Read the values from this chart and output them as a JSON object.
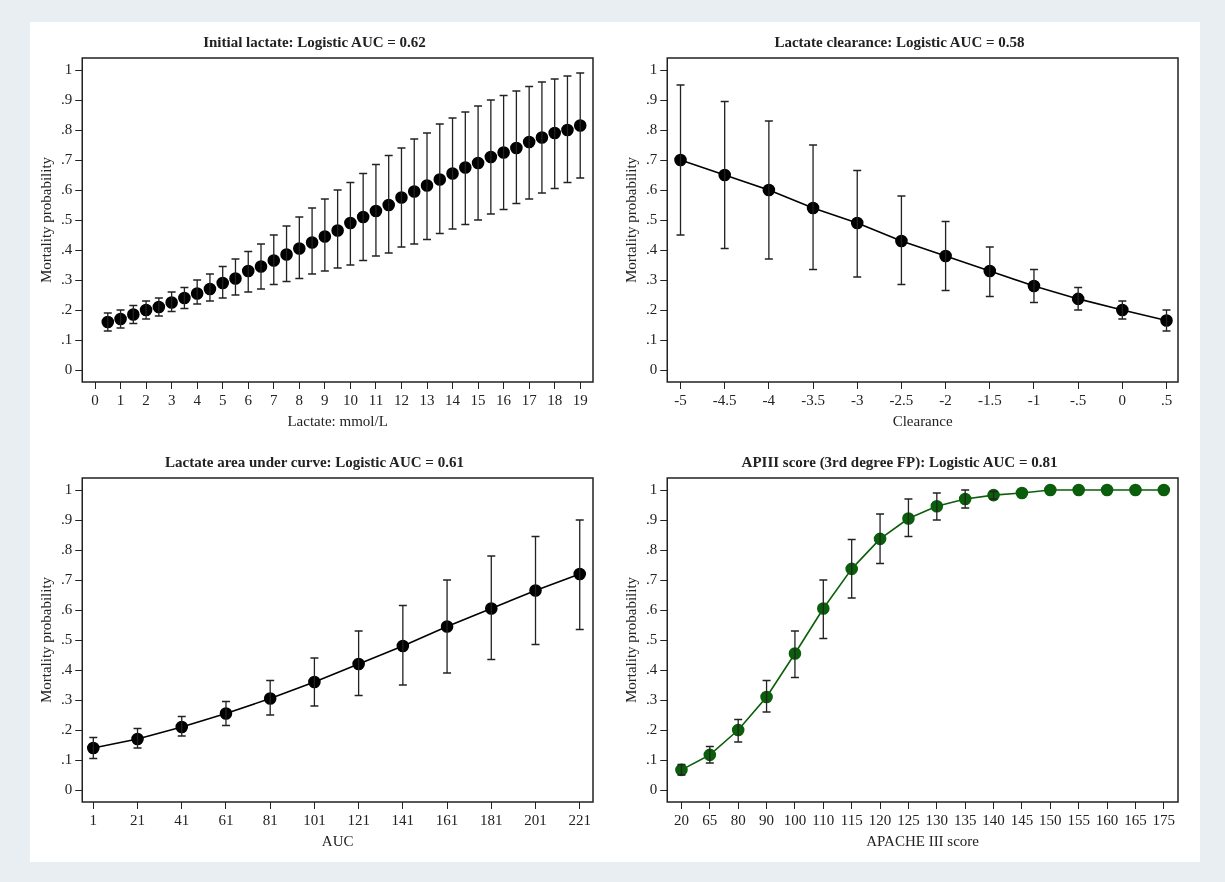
{
  "chart_data": [
    {
      "type": "scatter",
      "title": "Initial lactate: Logistic AUC = 0.62",
      "xlabel": "Lactate: mmol/L",
      "ylabel": "Mortality probability",
      "marker": "circle",
      "grid": false,
      "legend": false,
      "x": [
        0.5,
        1,
        1.5,
        2,
        2.5,
        3,
        3.5,
        4,
        4.5,
        5,
        5.5,
        6,
        6.5,
        7,
        7.5,
        8,
        8.5,
        9,
        9.5,
        10,
        10.5,
        11,
        11.5,
        12,
        12.5,
        13,
        13.5,
        14,
        14.5,
        15,
        15.5,
        16,
        16.5,
        17,
        17.5,
        18,
        18.5,
        19
      ],
      "series": [
        {
          "color": "#000000",
          "values": [
            0.16,
            0.17,
            0.185,
            0.2,
            0.21,
            0.225,
            0.24,
            0.255,
            0.27,
            0.29,
            0.305,
            0.33,
            0.345,
            0.365,
            0.385,
            0.405,
            0.425,
            0.445,
            0.465,
            0.49,
            0.51,
            0.53,
            0.55,
            0.575,
            0.595,
            0.615,
            0.635,
            0.655,
            0.675,
            0.69,
            0.71,
            0.725,
            0.74,
            0.76,
            0.775,
            0.79,
            0.8,
            0.815
          ],
          "errors": [
            [
              0.13,
              0.19
            ],
            [
              0.14,
              0.2
            ],
            [
              0.155,
              0.215
            ],
            [
              0.17,
              0.23
            ],
            [
              0.18,
              0.24
            ],
            [
              0.195,
              0.26
            ],
            [
              0.205,
              0.275
            ],
            [
              0.22,
              0.3
            ],
            [
              0.23,
              0.32
            ],
            [
              0.24,
              0.345
            ],
            [
              0.25,
              0.37
            ],
            [
              0.26,
              0.395
            ],
            [
              0.27,
              0.42
            ],
            [
              0.285,
              0.45
            ],
            [
              0.295,
              0.48
            ],
            [
              0.305,
              0.51
            ],
            [
              0.32,
              0.54
            ],
            [
              0.33,
              0.57
            ],
            [
              0.34,
              0.6
            ],
            [
              0.35,
              0.625
            ],
            [
              0.365,
              0.655
            ],
            [
              0.38,
              0.685
            ],
            [
              0.39,
              0.715
            ],
            [
              0.41,
              0.74
            ],
            [
              0.42,
              0.77
            ],
            [
              0.435,
              0.79
            ],
            [
              0.455,
              0.82
            ],
            [
              0.47,
              0.84
            ],
            [
              0.485,
              0.86
            ],
            [
              0.5,
              0.88
            ],
            [
              0.52,
              0.9
            ],
            [
              0.535,
              0.915
            ],
            [
              0.555,
              0.93
            ],
            [
              0.57,
              0.945
            ],
            [
              0.59,
              0.96
            ],
            [
              0.605,
              0.97
            ],
            [
              0.625,
              0.98
            ],
            [
              0.64,
              0.99
            ]
          ]
        }
      ],
      "xlim": [
        -0.5,
        19.5
      ],
      "xticks": [
        0,
        1,
        2,
        3,
        4,
        5,
        6,
        7,
        8,
        9,
        10,
        11,
        12,
        13,
        14,
        15,
        16,
        17,
        18,
        19
      ],
      "ylim": [
        -0.04,
        1.04
      ],
      "yticks": [
        {
          "value": 0,
          "label": "0"
        },
        {
          "value": 0.1,
          "label": ".1"
        },
        {
          "value": 0.2,
          "label": ".2"
        },
        {
          "value": 0.3,
          "label": ".3"
        },
        {
          "value": 0.4,
          "label": ".4"
        },
        {
          "value": 0.5,
          "label": ".5"
        },
        {
          "value": 0.6,
          "label": ".6"
        },
        {
          "value": 0.7,
          "label": ".7"
        },
        {
          "value": 0.8,
          "label": ".8"
        },
        {
          "value": 0.9,
          "label": ".9"
        },
        {
          "value": 1,
          "label": "1"
        }
      ]
    },
    {
      "type": "line",
      "title": "Lactate clearance: Logistic AUC = 0.58",
      "xlabel": "Clearance",
      "ylabel": "Mortality probability",
      "marker": "circle",
      "line_style": "solid",
      "grid": false,
      "legend": false,
      "x": [
        -5,
        -4.5,
        -4,
        -3.5,
        -3,
        -2.5,
        -2,
        -1.5,
        -1,
        -0.5,
        0,
        0.5
      ],
      "series": [
        {
          "color": "#000000",
          "values": [
            0.7,
            0.65,
            0.6,
            0.54,
            0.49,
            0.43,
            0.38,
            0.33,
            0.28,
            0.237,
            0.2,
            0.165
          ],
          "errors": [
            [
              0.45,
              0.95
            ],
            [
              0.405,
              0.895
            ],
            [
              0.37,
              0.83
            ],
            [
              0.335,
              0.75
            ],
            [
              0.31,
              0.665
            ],
            [
              0.285,
              0.58
            ],
            [
              0.265,
              0.495
            ],
            [
              0.245,
              0.41
            ],
            [
              0.225,
              0.335
            ],
            [
              0.2,
              0.275
            ],
            [
              0.17,
              0.23
            ],
            [
              0.13,
              0.2
            ]
          ]
        }
      ],
      "xlim": [
        -5.15,
        0.63
      ],
      "xticks": [
        -5,
        -4.5,
        -4,
        -3.5,
        -3,
        -2.5,
        -2,
        -1.5,
        -1,
        {
          "value": -0.5,
          "label": "-.5"
        },
        0,
        {
          "value": 0.5,
          "label": ".5"
        }
      ],
      "ylim": [
        -0.04,
        1.04
      ],
      "yticks": [
        {
          "value": 0,
          "label": "0"
        },
        {
          "value": 0.1,
          "label": ".1"
        },
        {
          "value": 0.2,
          "label": ".2"
        },
        {
          "value": 0.3,
          "label": ".3"
        },
        {
          "value": 0.4,
          "label": ".4"
        },
        {
          "value": 0.5,
          "label": ".5"
        },
        {
          "value": 0.6,
          "label": ".6"
        },
        {
          "value": 0.7,
          "label": ".7"
        },
        {
          "value": 0.8,
          "label": ".8"
        },
        {
          "value": 0.9,
          "label": ".9"
        },
        {
          "value": 1,
          "label": "1"
        }
      ]
    },
    {
      "type": "line",
      "title": "Lactate area under curve: Logistic AUC = 0.61",
      "xlabel": "AUC",
      "ylabel": "Mortality probability",
      "marker": "circle",
      "line_style": "solid",
      "grid": false,
      "legend": false,
      "x": [
        1,
        21,
        41,
        61,
        81,
        101,
        121,
        141,
        161,
        181,
        201,
        221
      ],
      "series": [
        {
          "color": "#000000",
          "values": [
            0.14,
            0.17,
            0.21,
            0.255,
            0.305,
            0.36,
            0.42,
            0.48,
            0.545,
            0.605,
            0.665,
            0.72
          ],
          "errors": [
            [
              0.105,
              0.175
            ],
            [
              0.14,
              0.205
            ],
            [
              0.18,
              0.245
            ],
            [
              0.215,
              0.295
            ],
            [
              0.25,
              0.365
            ],
            [
              0.28,
              0.44
            ],
            [
              0.315,
              0.53
            ],
            [
              0.35,
              0.615
            ],
            [
              0.39,
              0.7
            ],
            [
              0.435,
              0.78
            ],
            [
              0.485,
              0.845
            ],
            [
              0.535,
              0.9
            ]
          ]
        }
      ],
      "xlim": [
        -4,
        227
      ],
      "xticks": [
        1,
        21,
        41,
        61,
        81,
        101,
        121,
        141,
        161,
        181,
        201,
        221
      ],
      "ylim": [
        -0.04,
        1.04
      ],
      "yticks": [
        {
          "value": 0,
          "label": "0"
        },
        {
          "value": 0.1,
          "label": ".1"
        },
        {
          "value": 0.2,
          "label": ".2"
        },
        {
          "value": 0.3,
          "label": ".3"
        },
        {
          "value": 0.4,
          "label": ".4"
        },
        {
          "value": 0.5,
          "label": ".5"
        },
        {
          "value": 0.6,
          "label": ".6"
        },
        {
          "value": 0.7,
          "label": ".7"
        },
        {
          "value": 0.8,
          "label": ".8"
        },
        {
          "value": 0.9,
          "label": ".9"
        },
        {
          "value": 1,
          "label": "1"
        }
      ]
    },
    {
      "type": "line",
      "title": "APIII score (3rd degree FP): Logistic AUC = 0.81",
      "xlabel": "APACHE III score",
      "ylabel": "Mortality probability",
      "marker": "circle",
      "line_style": "solid",
      "grid": false,
      "legend": false,
      "categories": [
        "20",
        "65",
        "80",
        "90",
        "100",
        "110",
        "115",
        "120",
        "125",
        "130",
        "135",
        "140",
        "145",
        "150",
        "155",
        "160",
        "165",
        "175"
      ],
      "series": [
        {
          "color": "#0b5e0b",
          "values": [
            0.067,
            0.117,
            0.2,
            0.31,
            0.455,
            0.605,
            0.737,
            0.837,
            0.905,
            0.946,
            0.97,
            0.983,
            0.99,
            1,
            1,
            1,
            1,
            1
          ],
          "errors": [
            [
              0.05,
              0.085
            ],
            [
              0.09,
              0.145
            ],
            [
              0.16,
              0.235
            ],
            [
              0.26,
              0.365
            ],
            [
              0.375,
              0.53
            ],
            [
              0.505,
              0.7
            ],
            [
              0.64,
              0.835
            ],
            [
              0.755,
              0.92
            ],
            [
              0.845,
              0.97
            ],
            [
              0.9,
              0.99
            ],
            [
              0.94,
              1
            ],
            [
              0.97,
              0.995
            ],
            null,
            null,
            null,
            null,
            null,
            null
          ]
        }
      ],
      "ylim": [
        -0.04,
        1.04
      ],
      "yticks": [
        {
          "value": 0,
          "label": "0"
        },
        {
          "value": 0.1,
          "label": ".1"
        },
        {
          "value": 0.2,
          "label": ".2"
        },
        {
          "value": 0.3,
          "label": ".3"
        },
        {
          "value": 0.4,
          "label": ".4"
        },
        {
          "value": 0.5,
          "label": ".5"
        },
        {
          "value": 0.6,
          "label": ".6"
        },
        {
          "value": 0.7,
          "label": ".7"
        },
        {
          "value": 0.8,
          "label": ".8"
        },
        {
          "value": 0.9,
          "label": ".9"
        },
        {
          "value": 1,
          "label": "1"
        }
      ]
    }
  ]
}
